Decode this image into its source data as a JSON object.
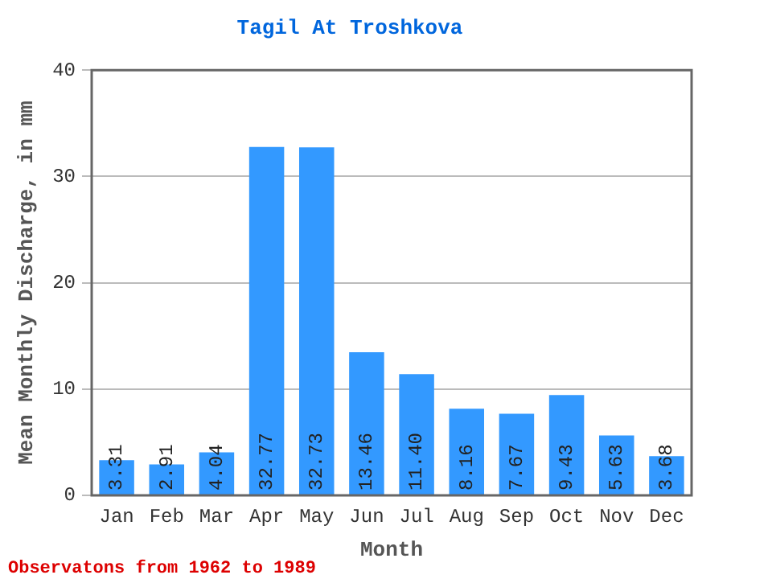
{
  "chart_data": {
    "type": "bar",
    "title": "Tagil At Troshkova",
    "xlabel": "Month",
    "ylabel": "Mean Monthly Discharge, in mm",
    "categories": [
      "Jan",
      "Feb",
      "Mar",
      "Apr",
      "May",
      "Jun",
      "Jul",
      "Aug",
      "Sep",
      "Oct",
      "Nov",
      "Dec"
    ],
    "values": [
      3.31,
      2.91,
      4.04,
      32.77,
      32.73,
      13.46,
      11.4,
      8.16,
      7.67,
      9.43,
      5.63,
      3.68
    ],
    "value_labels": [
      "3.31",
      "2.91",
      "4.04",
      "32.77",
      "32.73",
      "13.46",
      "11.40",
      "8.16",
      "7.67",
      "9.43",
      "5.63",
      "3.68"
    ],
    "color": "#3399ff",
    "ylim": [
      0,
      40
    ],
    "yticks": [
      0,
      10,
      20,
      30,
      40
    ],
    "grid": "y",
    "legend": false,
    "annotations": [
      "Observatons from 1962 to 1989"
    ]
  }
}
